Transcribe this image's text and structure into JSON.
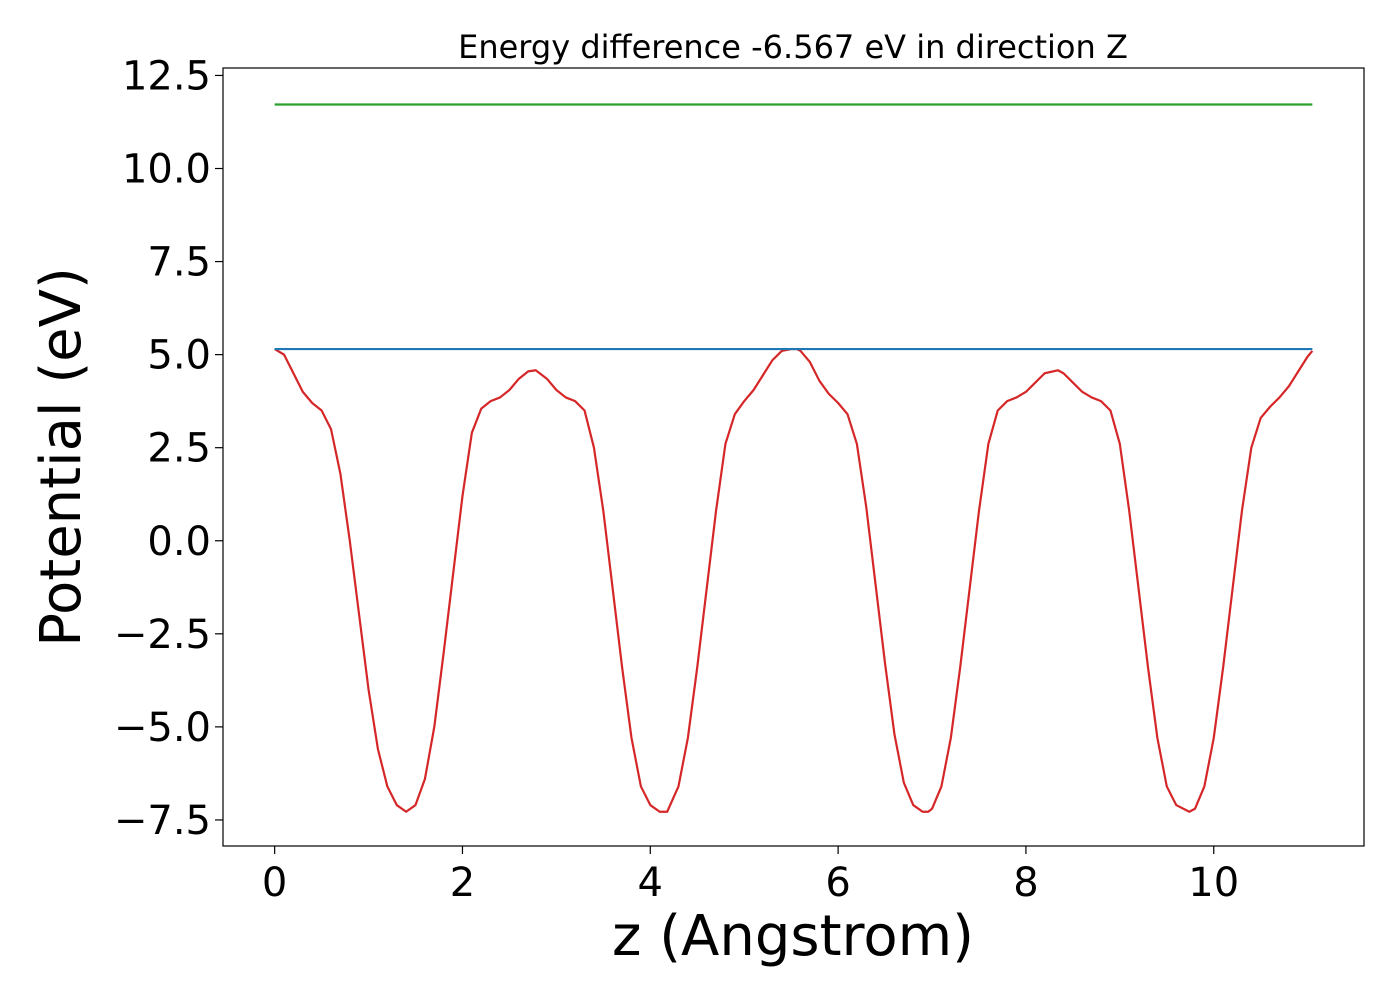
{
  "chart_data": {
    "type": "line",
    "title": "Energy difference -6.567 eV in direction Z",
    "xlabel": "z (Angstrom)",
    "ylabel": "Potential (eV)",
    "xlim": [
      -0.55,
      11.6
    ],
    "ylim": [
      -8.2,
      12.7
    ],
    "xticks": [
      0,
      2,
      4,
      6,
      8,
      10
    ],
    "xtick_labels": [
      "0",
      "2",
      "4",
      "6",
      "8",
      "10"
    ],
    "yticks": [
      -7.5,
      -5.0,
      -2.5,
      0.0,
      2.5,
      5.0,
      7.5,
      10.0,
      12.5
    ],
    "ytick_labels": [
      "−7.5",
      "−5.0",
      "−2.5",
      "0.0",
      "2.5",
      "5.0",
      "7.5",
      "10.0",
      "12.5"
    ],
    "grid": false,
    "legend": "none",
    "series": [
      {
        "color": "#d62728",
        "x": [
          0.0,
          0.1,
          0.2,
          0.3,
          0.4,
          0.5,
          0.6,
          0.7,
          0.8,
          0.9,
          1.0,
          1.1,
          1.2,
          1.3,
          1.4,
          1.5,
          1.6,
          1.7,
          1.8,
          1.9,
          2.0,
          2.1,
          2.2,
          2.3,
          2.4,
          2.5,
          2.6,
          2.7,
          2.78,
          2.9,
          3.0,
          3.1,
          3.2,
          3.3,
          3.4,
          3.5,
          3.6,
          3.7,
          3.8,
          3.9,
          4.0,
          4.1,
          4.18,
          4.3,
          4.4,
          4.5,
          4.6,
          4.7,
          4.8,
          4.9,
          5.0,
          5.1,
          5.2,
          5.3,
          5.4,
          5.5,
          5.56,
          5.6,
          5.7,
          5.8,
          5.9,
          6.0,
          6.1,
          6.2,
          6.3,
          6.4,
          6.5,
          6.6,
          6.7,
          6.8,
          6.9,
          6.96,
          7.0,
          7.1,
          7.2,
          7.3,
          7.4,
          7.5,
          7.6,
          7.7,
          7.8,
          7.9,
          8.0,
          8.1,
          8.2,
          8.34,
          8.4,
          8.5,
          8.6,
          8.7,
          8.8,
          8.9,
          9.0,
          9.1,
          9.2,
          9.3,
          9.4,
          9.5,
          9.6,
          9.74,
          9.8,
          9.9,
          10.0,
          10.1,
          10.2,
          10.3,
          10.4,
          10.5,
          10.6,
          10.7,
          10.8,
          10.9,
          11.0,
          11.05
        ],
        "y": [
          5.15,
          5.0,
          4.5,
          4.0,
          3.7,
          3.5,
          3.0,
          1.8,
          0.0,
          -2.0,
          -4.0,
          -5.6,
          -6.6,
          -7.1,
          -7.28,
          -7.1,
          -6.4,
          -5.0,
          -3.0,
          -0.9,
          1.2,
          2.9,
          3.55,
          3.75,
          3.85,
          4.05,
          4.35,
          4.55,
          4.58,
          4.35,
          4.05,
          3.85,
          3.75,
          3.5,
          2.5,
          0.8,
          -1.3,
          -3.4,
          -5.3,
          -6.6,
          -7.1,
          -7.28,
          -7.28,
          -6.6,
          -5.3,
          -3.4,
          -1.3,
          0.8,
          2.6,
          3.4,
          3.75,
          4.05,
          4.45,
          4.85,
          5.1,
          5.15,
          5.15,
          5.1,
          4.8,
          4.3,
          3.95,
          3.7,
          3.4,
          2.6,
          0.9,
          -1.2,
          -3.3,
          -5.2,
          -6.5,
          -7.1,
          -7.28,
          -7.28,
          -7.2,
          -6.6,
          -5.3,
          -3.4,
          -1.3,
          0.8,
          2.6,
          3.5,
          3.75,
          3.85,
          4.0,
          4.25,
          4.5,
          4.58,
          4.5,
          4.25,
          4.0,
          3.85,
          3.75,
          3.5,
          2.6,
          0.8,
          -1.3,
          -3.4,
          -5.3,
          -6.6,
          -7.1,
          -7.28,
          -7.2,
          -6.6,
          -5.3,
          -3.4,
          -1.3,
          0.8,
          2.5,
          3.3,
          3.6,
          3.85,
          4.15,
          4.55,
          4.95,
          5.1
        ]
      },
      {
        "color": "#1f77b4",
        "x": [
          0.0,
          11.05
        ],
        "y": [
          5.15,
          5.15
        ]
      },
      {
        "color": "#2ca02c",
        "x": [
          0.0,
          11.05
        ],
        "y": [
          11.72,
          11.72
        ]
      }
    ]
  }
}
